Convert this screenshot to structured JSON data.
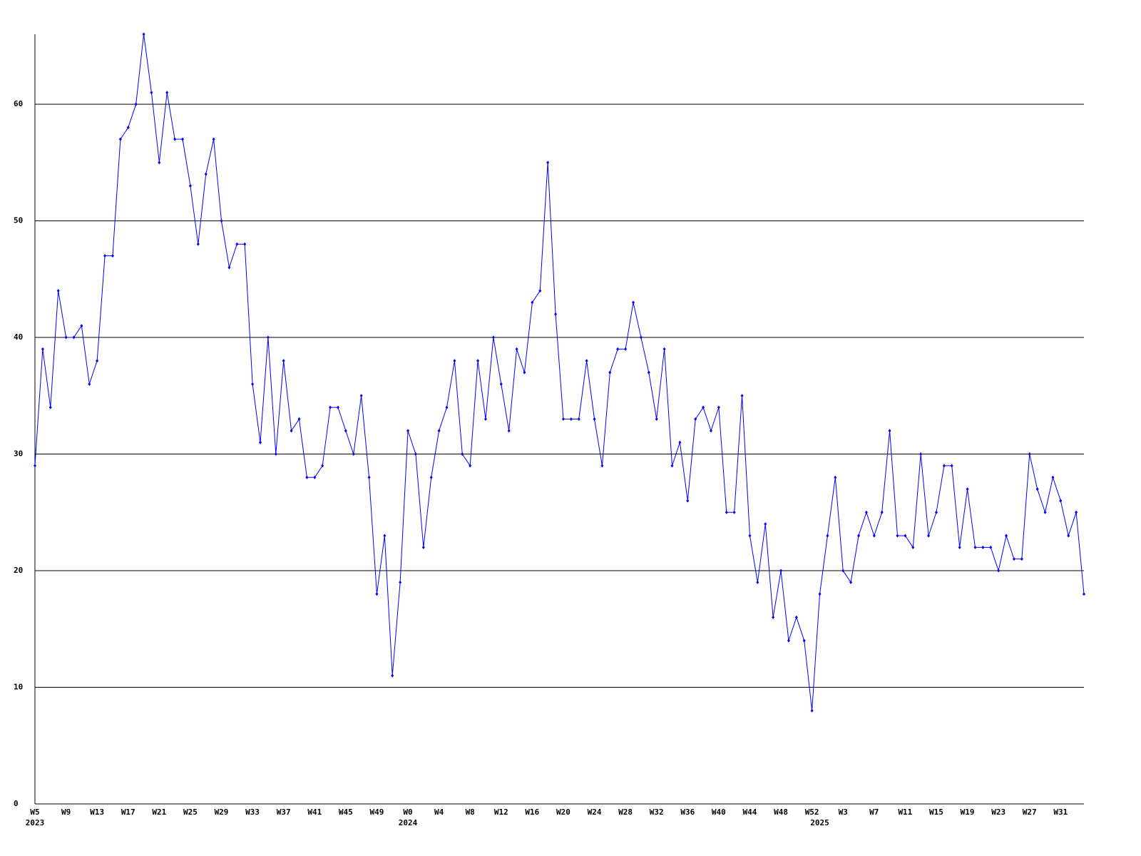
{
  "chart_data": {
    "type": "line",
    "categories": [
      "W5",
      null,
      null,
      null,
      "W9",
      null,
      null,
      null,
      "W13",
      null,
      null,
      null,
      "W17",
      null,
      null,
      null,
      "W21",
      null,
      null,
      null,
      "W25",
      null,
      null,
      null,
      "W29",
      null,
      null,
      null,
      "W33",
      null,
      null,
      null,
      "W37",
      null,
      null,
      null,
      "W41",
      null,
      null,
      null,
      "W45",
      null,
      null,
      null,
      "W49",
      null,
      null,
      null,
      "W0",
      null,
      null,
      null,
      "W4",
      null,
      null,
      null,
      "W8",
      null,
      null,
      null,
      "W12",
      null,
      null,
      null,
      "W16",
      null,
      null,
      null,
      "W20",
      null,
      null,
      null,
      "W24",
      null,
      null,
      null,
      "W28",
      null,
      null,
      null,
      "W32",
      null,
      null,
      null,
      "W36",
      null,
      null,
      null,
      "W40",
      null,
      null,
      null,
      "W44",
      null,
      null,
      null,
      "W48",
      null,
      null,
      null,
      "W52",
      null,
      null,
      null,
      "W3",
      null,
      null,
      null,
      "W7",
      null,
      null,
      null,
      "W11",
      null,
      null,
      null,
      "W15",
      null,
      null,
      null,
      "W19",
      null,
      null,
      null,
      "W23",
      null,
      null,
      null,
      "W27",
      null,
      null,
      null,
      "W31",
      null,
      null,
      null
    ],
    "category_years": [
      "2023",
      null,
      null,
      null,
      null,
      null,
      null,
      null,
      null,
      null,
      null,
      null,
      null,
      null,
      null,
      null,
      null,
      null,
      null,
      null,
      null,
      null,
      null,
      null,
      null,
      null,
      null,
      null,
      null,
      null,
      null,
      null,
      null,
      null,
      null,
      null,
      null,
      null,
      null,
      null,
      null,
      null,
      null,
      null,
      null,
      null,
      null,
      null,
      "2024",
      null,
      null,
      null,
      null,
      null,
      null,
      null,
      null,
      null,
      null,
      null,
      null,
      null,
      null,
      null,
      null,
      null,
      null,
      null,
      null,
      null,
      null,
      null,
      null,
      null,
      null,
      null,
      null,
      null,
      null,
      null,
      null,
      null,
      null,
      null,
      null,
      null,
      null,
      null,
      null,
      null,
      null,
      null,
      null,
      null,
      null,
      null,
      null,
      null,
      null,
      null,
      null,
      "2025",
      null,
      null,
      null,
      null,
      null,
      null,
      null,
      null,
      null,
      null,
      null,
      null,
      null,
      null,
      null,
      null,
      null,
      null,
      null,
      null,
      null,
      null,
      null,
      null,
      null,
      null,
      null,
      null,
      null,
      null,
      null,
      null,
      null,
      null
    ],
    "series": [
      {
        "color": "#0000ff",
        "values": [
          29,
          39,
          34,
          44,
          40,
          40,
          41,
          36,
          38,
          47,
          47,
          57,
          58,
          60,
          66,
          61,
          55,
          61,
          57,
          57,
          53,
          48,
          54,
          57,
          50,
          46,
          48,
          48,
          36,
          31,
          40,
          30,
          38,
          32,
          33,
          28,
          28,
          29,
          34,
          34,
          32,
          30,
          35,
          28,
          18,
          23,
          11,
          19,
          32,
          30,
          22,
          28,
          32,
          34,
          38,
          30,
          29,
          38,
          33,
          40,
          36,
          32,
          39,
          37,
          43,
          44,
          55,
          42,
          33,
          33,
          33,
          38,
          33,
          29,
          37,
          39,
          39,
          43,
          40,
          37,
          33,
          39,
          29,
          31,
          26,
          33,
          34,
          32,
          34,
          25,
          25,
          35,
          23,
          19,
          24,
          16,
          20,
          14,
          16,
          14,
          8,
          18,
          23,
          28,
          20,
          19,
          23,
          25,
          23,
          25,
          32,
          23,
          23,
          22,
          30,
          23,
          25,
          29,
          29,
          22,
          27,
          22,
          22,
          22,
          20,
          23,
          21,
          21,
          30,
          27,
          25,
          28,
          26,
          23,
          25,
          18
        ]
      }
    ],
    "ylim": [
      0,
      66
    ],
    "yticks": [
      0,
      10,
      20,
      30,
      40,
      50,
      60
    ],
    "grid": true
  }
}
